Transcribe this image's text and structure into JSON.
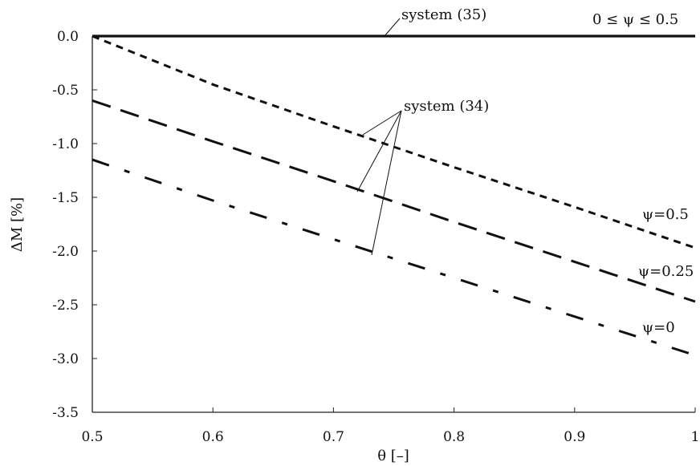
{
  "chart_data": {
    "type": "line",
    "xlabel": "θ [–]",
    "ylabel": "ΔM [%]",
    "xlim": [
      0.5,
      1.0
    ],
    "ylim": [
      -3.5,
      0.0
    ],
    "xticks": [
      "0.5",
      "0.6",
      "0.7",
      "0.8",
      "0.9",
      "1"
    ],
    "yticks": [
      "0.0",
      "-0.5",
      "-1.0",
      "-1.5",
      "-2.0",
      "-2.5",
      "-3.0",
      "-3.5"
    ],
    "grid": false,
    "series": [
      {
        "label": "0 ≤ ψ ≤ 0.5",
        "style": "solid",
        "x": [
          0.5,
          1.0
        ],
        "y": [
          0.0,
          0.0
        ]
      },
      {
        "label": "ψ=0.5",
        "style": "short-dash",
        "x": [
          0.5,
          0.6,
          0.7,
          0.8,
          0.9,
          1.0
        ],
        "y": [
          0.0,
          -0.45,
          -0.84,
          -1.22,
          -1.59,
          -1.97
        ]
      },
      {
        "label": "ψ=0.25",
        "style": "long-dash",
        "x": [
          0.5,
          0.6,
          0.7,
          0.8,
          0.9,
          1.0
        ],
        "y": [
          -0.6,
          -0.98,
          -1.35,
          -1.73,
          -2.1,
          -2.47
        ]
      },
      {
        "label": "ψ=0",
        "style": "dash-dot",
        "x": [
          0.5,
          0.6,
          0.7,
          0.8,
          0.9,
          1.0
        ],
        "y": [
          -1.15,
          -1.53,
          -1.89,
          -2.25,
          -2.61,
          -2.97
        ]
      }
    ],
    "annotations": [
      {
        "text": "system (35)"
      },
      {
        "text": "system (34)"
      }
    ]
  }
}
